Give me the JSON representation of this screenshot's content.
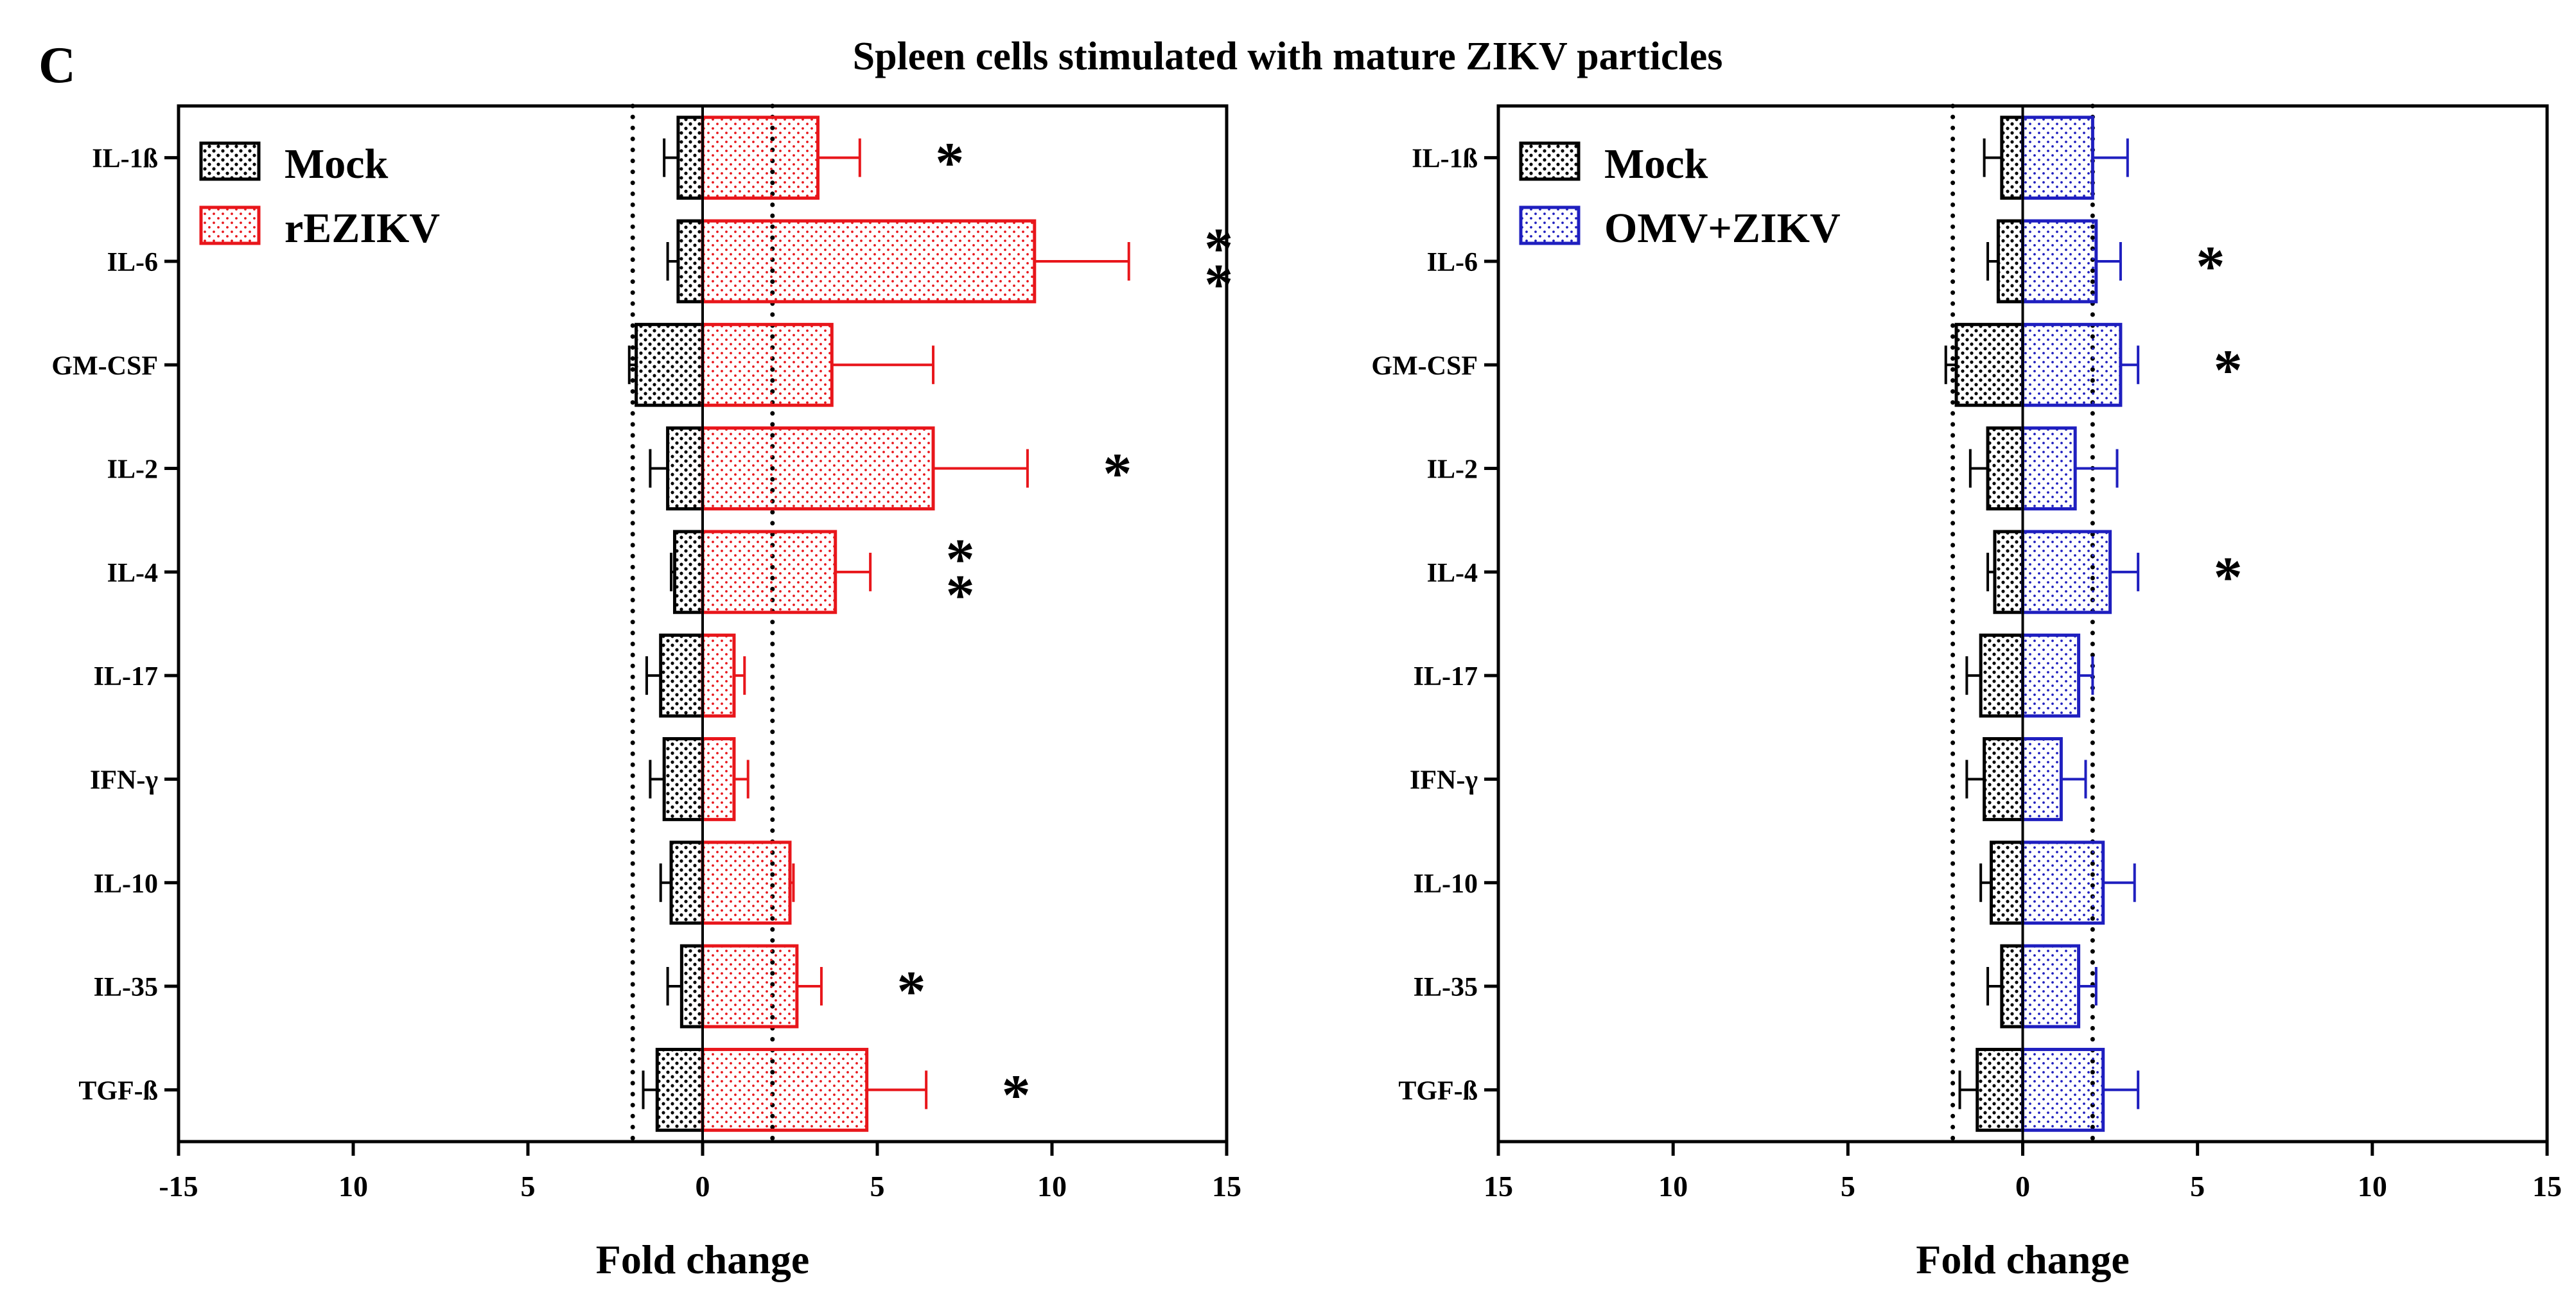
{
  "panel_letter": "C",
  "figure_title": "Spleen cells stimulated with mature ZIKV particles",
  "colors": {
    "mock": "#000000",
    "rezikv": "#e8161b",
    "omv_zikv": "#1f1fbf"
  },
  "chart_data": [
    {
      "type": "bar",
      "orientation": "horizontal",
      "panel": "left",
      "xlabel": "Fold change",
      "x_tick_labels": [
        "-15",
        "10",
        "5",
        "0",
        "5",
        "10",
        "15"
      ],
      "xlim": [
        -15,
        15
      ],
      "threshold_lines": [
        -2,
        2
      ],
      "categories": [
        "IL-1ß",
        "IL-6",
        "GM-CSF",
        "IL-2",
        "IL-4",
        "IL-17",
        "IFN-γ",
        "IL-10",
        "IL-35",
        "TGF-ß"
      ],
      "legend": [
        "Mock",
        "rEZIKV"
      ],
      "legend_position": "top-left",
      "series": [
        {
          "name": "Mock",
          "color_key": "mock",
          "values": [
            -0.7,
            -0.7,
            -1.9,
            -1.0,
            -0.8,
            -1.2,
            -1.1,
            -0.9,
            -0.6,
            -1.3
          ],
          "errors": [
            0.4,
            0.3,
            0.2,
            0.5,
            0.1,
            0.4,
            0.4,
            0.3,
            0.4,
            0.4
          ]
        },
        {
          "name": "rEZIKV",
          "color_key": "rezikv",
          "values": [
            3.3,
            9.5,
            3.7,
            6.6,
            3.8,
            0.9,
            0.9,
            2.5,
            2.7,
            4.7
          ],
          "errors": [
            1.2,
            2.7,
            2.9,
            2.7,
            1.0,
            0.3,
            0.4,
            0.1,
            0.7,
            1.7
          ]
        }
      ],
      "significance": [
        "*",
        "**",
        "",
        "*",
        "**",
        "",
        "",
        "",
        "*",
        "*"
      ]
    },
    {
      "type": "bar",
      "orientation": "horizontal",
      "panel": "right",
      "xlabel": "Fold change",
      "x_tick_labels": [
        "15",
        "10",
        "5",
        "0",
        "5",
        "10",
        "15"
      ],
      "xlim": [
        -15,
        15
      ],
      "threshold_lines": [
        -2,
        2
      ],
      "categories": [
        "IL-1ß",
        "IL-6",
        "GM-CSF",
        "IL-2",
        "IL-4",
        "IL-17",
        "IFN-γ",
        "IL-10",
        "IL-35",
        "TGF-ß"
      ],
      "legend": [
        "Mock",
        "OMV+ZIKV"
      ],
      "legend_position": "top-left",
      "series": [
        {
          "name": "Mock",
          "color_key": "mock",
          "values": [
            -0.6,
            -0.7,
            -1.9,
            -1.0,
            -0.8,
            -1.2,
            -1.1,
            -0.9,
            -0.6,
            -1.3
          ],
          "errors": [
            0.5,
            0.3,
            0.3,
            0.5,
            0.2,
            0.4,
            0.5,
            0.3,
            0.4,
            0.5
          ]
        },
        {
          "name": "OMV+ZIKV",
          "color_key": "omv_zikv",
          "values": [
            2.0,
            2.1,
            2.8,
            1.5,
            2.5,
            1.6,
            1.1,
            2.3,
            1.6,
            2.3
          ],
          "errors": [
            1.0,
            0.7,
            0.5,
            1.2,
            0.8,
            0.4,
            0.7,
            0.9,
            0.5,
            1.0
          ]
        }
      ],
      "significance": [
        "",
        "*",
        "*",
        "",
        "*",
        "",
        "",
        "",
        "",
        ""
      ]
    }
  ]
}
